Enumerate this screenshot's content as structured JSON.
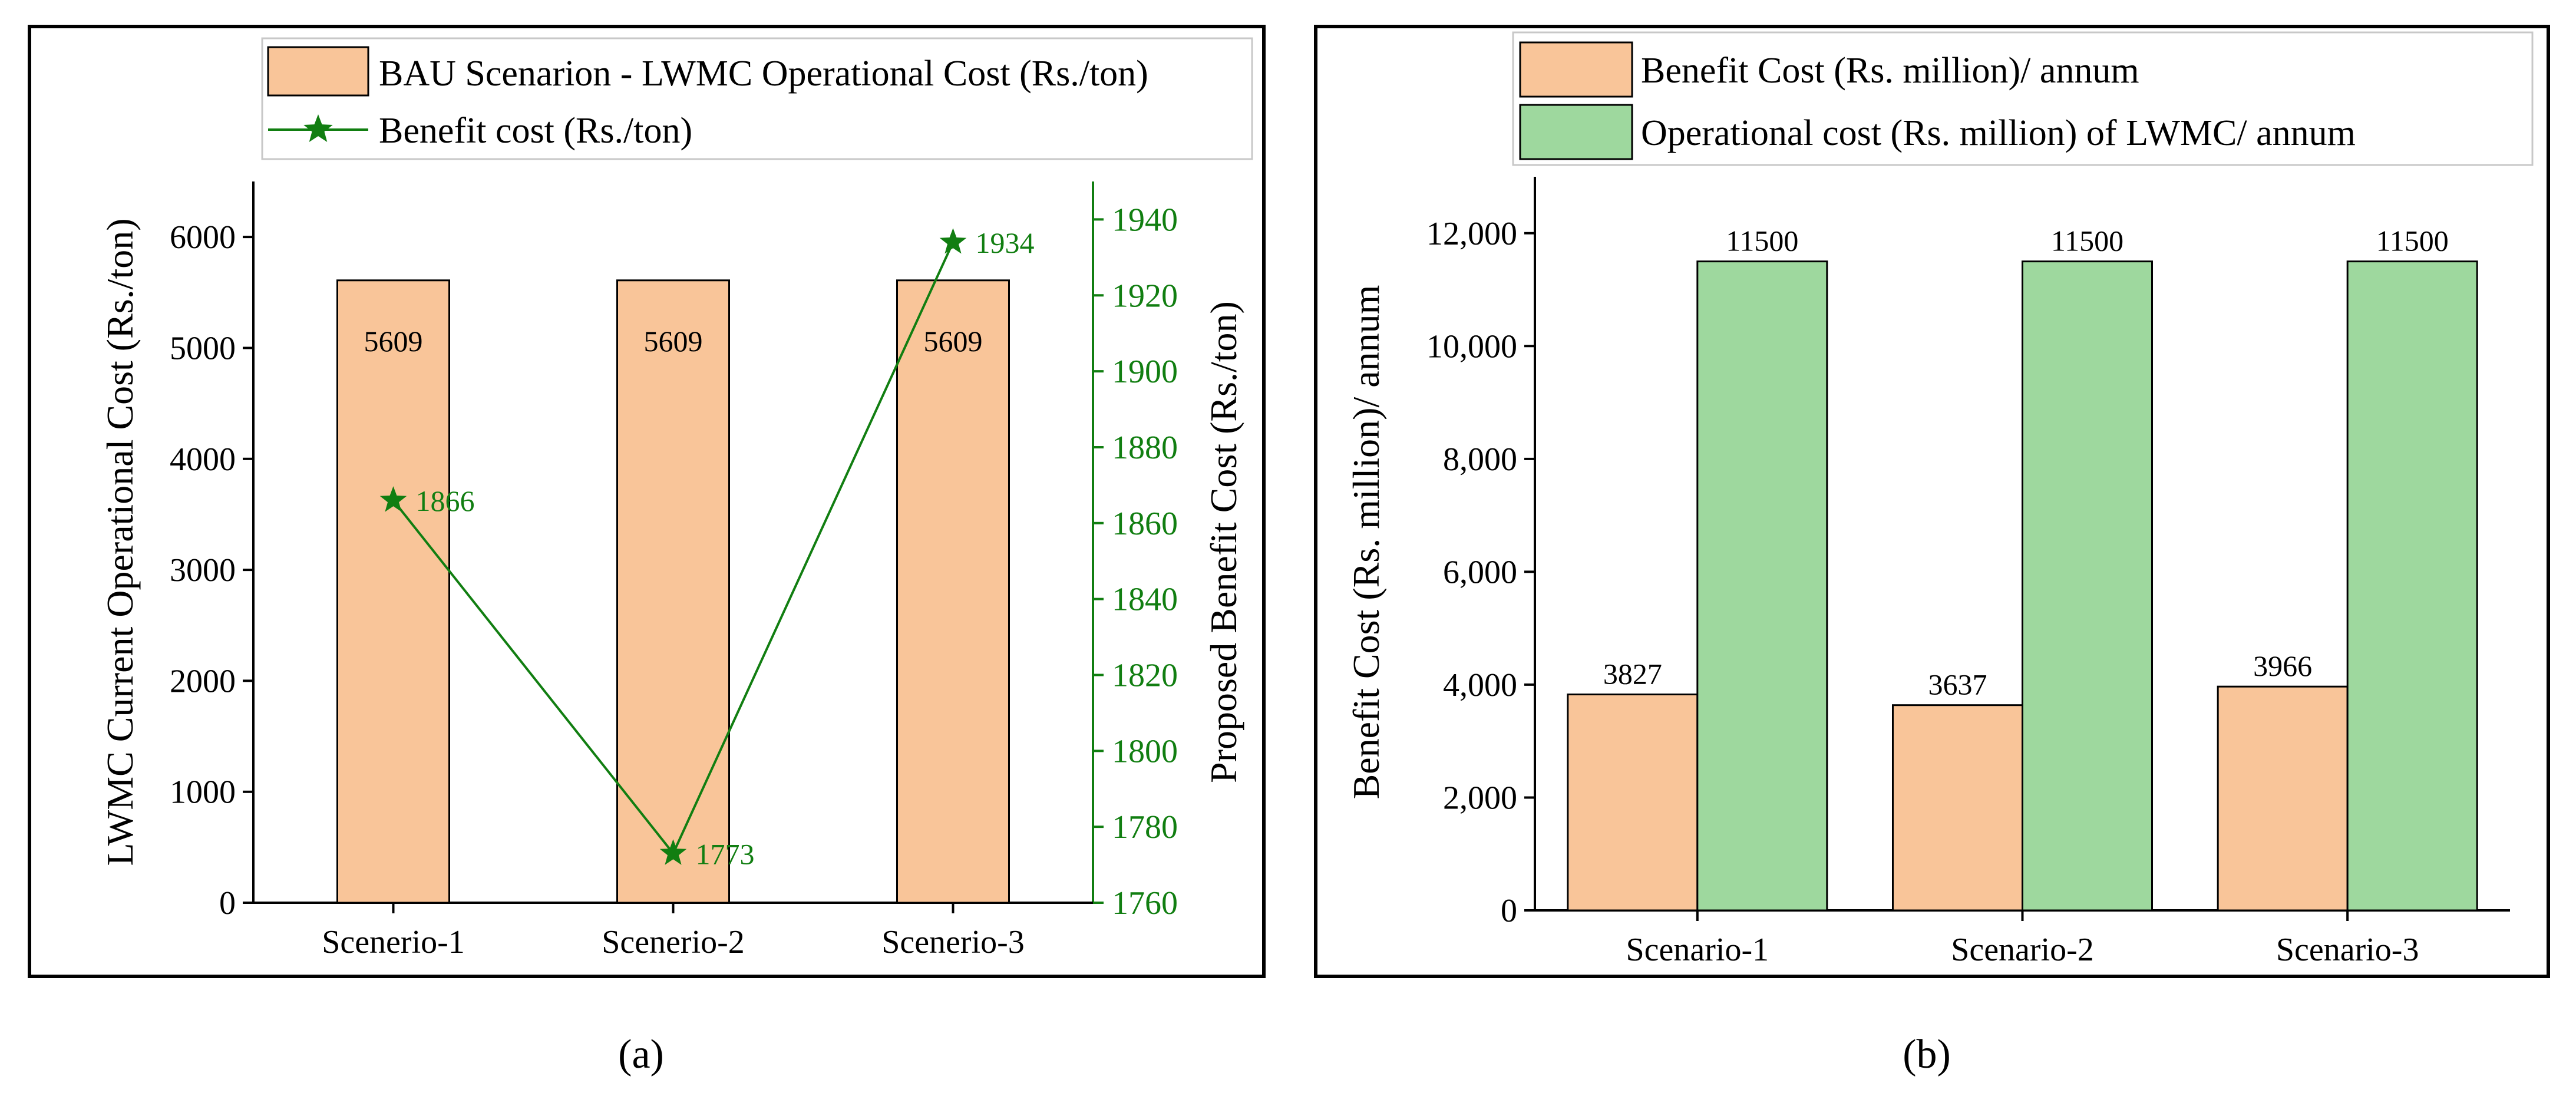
{
  "chart_data": [
    {
      "id": "a",
      "type": "bar",
      "caption": "(a)",
      "categories": [
        "Scenerio-1",
        "Scenerio-2",
        "Scenerio-3"
      ],
      "ylabel_left": "LWMC Current Operational Cost (Rs./ton)",
      "ylabel_right": "Proposed Benefit Cost (Rs./ton)",
      "ylim_left": [
        0,
        6500
      ],
      "yticks_left": [
        0,
        1000,
        2000,
        3000,
        4000,
        5000,
        6000
      ],
      "ylim_right": [
        1760,
        1950
      ],
      "yticks_right": [
        1760,
        1780,
        1800,
        1820,
        1840,
        1860,
        1880,
        1900,
        1920,
        1940
      ],
      "series": [
        {
          "name": "BAU Scenarion - LWMC Operational Cost (Rs./ton)",
          "kind": "bar",
          "axis": "left",
          "values": [
            5609,
            5609,
            5609
          ],
          "color": "#f9c599"
        },
        {
          "name": "Benefit cost (Rs./ton)",
          "kind": "line",
          "marker": "star",
          "axis": "right",
          "values": [
            1866,
            1773,
            1934
          ],
          "color": "#117e11"
        }
      ],
      "legend": "top-right"
    },
    {
      "id": "b",
      "type": "bar",
      "caption": "(b)",
      "categories": [
        "Scenario-1",
        "Scenario-2",
        "Scenario-3"
      ],
      "ylabel": "Benefit Cost (Rs. million)/ annum",
      "ylim": [
        0,
        13000
      ],
      "yticks": [
        0,
        2000,
        4000,
        6000,
        8000,
        10000,
        12000
      ],
      "ytick_labels": [
        "0",
        "2,000",
        "4,000",
        "6,000",
        "8,000",
        "10,000",
        "12,000"
      ],
      "series": [
        {
          "name": "Benefit Cost (Rs. million)/ annum",
          "values": [
            3827,
            3637,
            3966
          ],
          "color": "#f9c599"
        },
        {
          "name": "Operational cost (Rs. million) of LWMC/ annum",
          "values": [
            11500,
            11500,
            11500
          ],
          "color": "#9ed89e"
        }
      ],
      "legend": "top"
    }
  ]
}
